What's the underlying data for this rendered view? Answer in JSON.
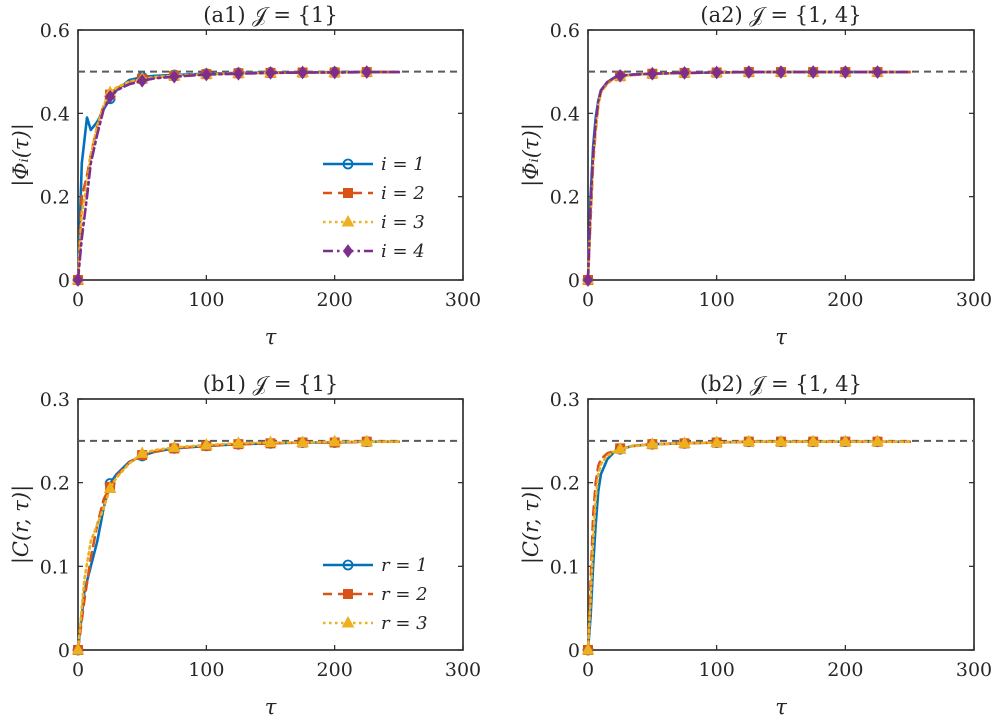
{
  "chart_data": [
    {
      "type": "line",
      "panel": "a1",
      "title": "(a1) 𝒥 = {1}",
      "xlabel": "τ",
      "ylabel": "|Φᵢ(τ)|",
      "xlim": [
        0,
        300
      ],
      "ylim": [
        0,
        0.6
      ],
      "xticks": [
        "0",
        "100",
        "200",
        "300"
      ],
      "yticks": [
        "0",
        "0.2",
        "0.4",
        "0.6"
      ],
      "reference_line": 0.5,
      "legend": {
        "position": "center-right"
      },
      "x": [
        0,
        3,
        7,
        10,
        15,
        20,
        25,
        30,
        40,
        50,
        60,
        75,
        100,
        125,
        150,
        175,
        200,
        225,
        250
      ],
      "series": [
        {
          "name": "i = 1",
          "color": "#0072BD",
          "dash": "solid",
          "marker": "circle",
          "values": [
            0,
            0.28,
            0.39,
            0.36,
            0.38,
            0.41,
            0.435,
            0.455,
            0.48,
            0.487,
            0.49,
            0.492,
            0.495,
            0.497,
            0.498,
            0.498,
            0.499,
            0.499,
            0.499
          ]
        },
        {
          "name": "i = 2",
          "color": "#D95319",
          "dash": "dashed",
          "marker": "square",
          "values": [
            0,
            0.2,
            0.25,
            0.3,
            0.37,
            0.42,
            0.445,
            0.46,
            0.475,
            0.483,
            0.487,
            0.49,
            0.494,
            0.496,
            0.497,
            0.498,
            0.498,
            0.499,
            0.499
          ]
        },
        {
          "name": "i = 3",
          "color": "#EDB120",
          "dash": "dotted",
          "marker": "triangle",
          "values": [
            0,
            0.16,
            0.23,
            0.3,
            0.37,
            0.42,
            0.45,
            0.462,
            0.476,
            0.483,
            0.487,
            0.49,
            0.494,
            0.496,
            0.497,
            0.498,
            0.498,
            0.499,
            0.499
          ]
        },
        {
          "name": "i = 4",
          "color": "#7E2F8E",
          "dash": "dashdot",
          "marker": "diamond",
          "values": [
            0,
            0.1,
            0.2,
            0.28,
            0.35,
            0.41,
            0.44,
            0.455,
            0.47,
            0.478,
            0.484,
            0.488,
            0.493,
            0.495,
            0.497,
            0.498,
            0.498,
            0.499,
            0.499
          ]
        }
      ]
    },
    {
      "type": "line",
      "panel": "a2",
      "title": "(a2) 𝒥 = {1, 4}",
      "xlabel": "τ",
      "ylabel": "|Φᵢ(τ)|",
      "xlim": [
        0,
        300
      ],
      "ylim": [
        0,
        0.6
      ],
      "xticks": [
        "0",
        "100",
        "200",
        "300"
      ],
      "yticks": [
        "0",
        "0.2",
        "0.4",
        "0.6"
      ],
      "reference_line": 0.5,
      "x": [
        0,
        2,
        4,
        6,
        8,
        10,
        15,
        20,
        25,
        35,
        50,
        75,
        100,
        125,
        150,
        175,
        200,
        225,
        250
      ],
      "series": [
        {
          "name": "i = 1",
          "color": "#0072BD",
          "dash": "solid",
          "marker": "circle",
          "values": [
            0,
            0.2,
            0.32,
            0.39,
            0.43,
            0.455,
            0.475,
            0.485,
            0.49,
            0.493,
            0.495,
            0.497,
            0.498,
            0.499,
            0.499,
            0.499,
            0.499,
            0.499,
            0.499
          ]
        },
        {
          "name": "i = 2",
          "color": "#D95319",
          "dash": "dashed",
          "marker": "square",
          "values": [
            0,
            0.15,
            0.28,
            0.36,
            0.42,
            0.45,
            0.472,
            0.483,
            0.489,
            0.492,
            0.495,
            0.497,
            0.498,
            0.499,
            0.499,
            0.499,
            0.499,
            0.499,
            0.499
          ]
        },
        {
          "name": "i = 3",
          "color": "#EDB120",
          "dash": "dotted",
          "marker": "triangle",
          "values": [
            0,
            0.15,
            0.28,
            0.36,
            0.42,
            0.45,
            0.472,
            0.483,
            0.489,
            0.492,
            0.495,
            0.497,
            0.498,
            0.499,
            0.499,
            0.499,
            0.499,
            0.499,
            0.499
          ]
        },
        {
          "name": "i = 4",
          "color": "#7E2F8E",
          "dash": "dashdot",
          "marker": "diamond",
          "values": [
            0,
            0.18,
            0.3,
            0.38,
            0.43,
            0.455,
            0.475,
            0.485,
            0.49,
            0.493,
            0.495,
            0.497,
            0.498,
            0.499,
            0.499,
            0.499,
            0.499,
            0.499,
            0.499
          ]
        }
      ]
    },
    {
      "type": "line",
      "panel": "b1",
      "title": "(b1) 𝒥 = {1}",
      "xlabel": "τ",
      "ylabel": "|C(r, τ)|",
      "xlim": [
        0,
        300
      ],
      "ylim": [
        0,
        0.3
      ],
      "xticks": [
        "0",
        "100",
        "200",
        "300"
      ],
      "yticks": [
        "0",
        "0.1",
        "0.2",
        "0.3"
      ],
      "reference_line": 0.25,
      "legend": {
        "position": "bottom-right"
      },
      "x": [
        0,
        5,
        10,
        15,
        20,
        25,
        30,
        40,
        50,
        60,
        75,
        100,
        125,
        150,
        175,
        200,
        225,
        250
      ],
      "series": [
        {
          "name": "r = 1",
          "color": "#0072BD",
          "dash": "solid",
          "marker": "circle",
          "values": [
            0,
            0.07,
            0.1,
            0.13,
            0.17,
            0.199,
            0.21,
            0.225,
            0.232,
            0.237,
            0.241,
            0.244,
            0.246,
            0.247,
            0.248,
            0.248,
            0.249,
            0.249
          ]
        },
        {
          "name": "r = 2",
          "color": "#D95319",
          "dash": "dashed",
          "marker": "square",
          "values": [
            0,
            0.06,
            0.11,
            0.15,
            0.18,
            0.195,
            0.208,
            0.224,
            0.233,
            0.237,
            0.241,
            0.244,
            0.246,
            0.247,
            0.248,
            0.248,
            0.249,
            0.249
          ]
        },
        {
          "name": "r = 3",
          "color": "#EDB120",
          "dash": "dotted",
          "marker": "triangle",
          "values": [
            0,
            0.085,
            0.13,
            0.15,
            0.17,
            0.193,
            0.206,
            0.223,
            0.235,
            0.239,
            0.242,
            0.245,
            0.247,
            0.248,
            0.248,
            0.249,
            0.249,
            0.249
          ]
        }
      ]
    },
    {
      "type": "line",
      "panel": "b2",
      "title": "(b2) 𝒥 = {1, 4}",
      "xlabel": "τ",
      "ylabel": "|C(r, τ)|",
      "xlim": [
        0,
        300
      ],
      "ylim": [
        0,
        0.3
      ],
      "xticks": [
        "0",
        "100",
        "200",
        "300"
      ],
      "yticks": [
        "0",
        "0.1",
        "0.2",
        "0.3"
      ],
      "reference_line": 0.25,
      "x": [
        0,
        2,
        4,
        6,
        8,
        10,
        15,
        20,
        25,
        35,
        50,
        75,
        100,
        125,
        150,
        175,
        200,
        225,
        250
      ],
      "series": [
        {
          "name": "r = 1",
          "color": "#0072BD",
          "dash": "solid",
          "marker": "circle",
          "values": [
            0,
            0.04,
            0.1,
            0.15,
            0.19,
            0.21,
            0.228,
            0.236,
            0.24,
            0.244,
            0.246,
            0.247,
            0.248,
            0.249,
            0.249,
            0.249,
            0.249,
            0.249,
            0.249
          ]
        },
        {
          "name": "r = 2",
          "color": "#D95319",
          "dash": "dashed",
          "marker": "square",
          "values": [
            0,
            0.08,
            0.16,
            0.2,
            0.22,
            0.228,
            0.235,
            0.238,
            0.241,
            0.244,
            0.246,
            0.247,
            0.248,
            0.249,
            0.249,
            0.249,
            0.249,
            0.249,
            0.249
          ]
        },
        {
          "name": "r = 3",
          "color": "#EDB120",
          "dash": "dotted",
          "marker": "triangle",
          "values": [
            0,
            0.06,
            0.13,
            0.18,
            0.21,
            0.222,
            0.232,
            0.237,
            0.24,
            0.244,
            0.246,
            0.247,
            0.248,
            0.249,
            0.249,
            0.249,
            0.249,
            0.249,
            0.249
          ]
        }
      ]
    }
  ]
}
